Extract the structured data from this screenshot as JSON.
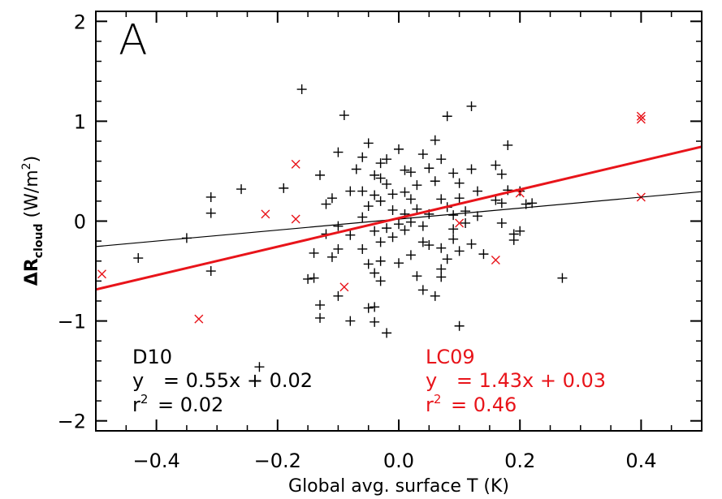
{
  "chart_data": {
    "type": "scatter",
    "panel_label": "A",
    "xlabel": "Global avg. surface T (K)",
    "ylabel": {
      "main": "ΔR",
      "sub": "cloud",
      "unit_pre": " (W/m",
      "unit_sup": "2",
      "unit_post": ")"
    },
    "xlim": [
      -0.5,
      0.5
    ],
    "ylim": [
      -2.1,
      2.1
    ],
    "xticks": [
      -0.4,
      -0.2,
      0.0,
      0.2,
      0.4
    ],
    "xtick_labels": [
      "−0.4",
      "−0.2",
      "0.0",
      "0.2",
      "0.4"
    ],
    "yticks": [
      -2,
      -1,
      0,
      1,
      2
    ],
    "ytick_labels": [
      "−2",
      "−1",
      "0",
      "1",
      "2"
    ],
    "grid": false,
    "colors": {
      "D10": "#000000",
      "LC09": "#e8141a"
    },
    "series": [
      {
        "name": "D10",
        "marker": "plus",
        "fit": {
          "slope": 0.55,
          "intercept": 0.02
        },
        "points": [
          [
            -0.43,
            -0.37
          ],
          [
            -0.35,
            -0.17
          ],
          [
            -0.31,
            0.24
          ],
          [
            -0.31,
            0.08
          ],
          [
            -0.31,
            -0.5
          ],
          [
            -0.26,
            0.32
          ],
          [
            -0.23,
            -1.46
          ],
          [
            -0.19,
            0.33
          ],
          [
            -0.16,
            1.32
          ],
          [
            -0.15,
            -0.58
          ],
          [
            -0.14,
            -0.57
          ],
          [
            -0.14,
            -0.32
          ],
          [
            -0.13,
            0.46
          ],
          [
            -0.13,
            -0.84
          ],
          [
            -0.13,
            -0.97
          ],
          [
            -0.12,
            0.17
          ],
          [
            -0.12,
            -0.13
          ],
          [
            -0.11,
            0.23
          ],
          [
            -0.11,
            -0.36
          ],
          [
            -0.1,
            0.69
          ],
          [
            -0.1,
            -0.05
          ],
          [
            -0.1,
            -0.28
          ],
          [
            -0.1,
            -0.75
          ],
          [
            -0.09,
            1.06
          ],
          [
            -0.08,
            0.3
          ],
          [
            -0.08,
            -0.14
          ],
          [
            -0.07,
            0.52
          ],
          [
            -0.06,
            0.64
          ],
          [
            -0.06,
            0.3
          ],
          [
            -0.06,
            0.04
          ],
          [
            -0.06,
            -0.28
          ],
          [
            -0.05,
            0.78
          ],
          [
            -0.05,
            0.15
          ],
          [
            -0.05,
            -0.43
          ],
          [
            -0.05,
            -0.87
          ],
          [
            -0.04,
            0.46
          ],
          [
            -0.04,
            0.26
          ],
          [
            -0.04,
            -0.1
          ],
          [
            -0.04,
            -0.52
          ],
          [
            -0.04,
            -0.86
          ],
          [
            -0.04,
            -1.01
          ],
          [
            -0.03,
            0.58
          ],
          [
            -0.03,
            0.43
          ],
          [
            -0.03,
            0.2
          ],
          [
            -0.03,
            -0.21
          ],
          [
            -0.03,
            -0.4
          ],
          [
            -0.03,
            -0.6
          ],
          [
            -0.02,
            0.62
          ],
          [
            -0.02,
            -0.07
          ],
          [
            -0.02,
            -1.12
          ],
          [
            -0.01,
            0.27
          ],
          [
            -0.01,
            0.11
          ],
          [
            -0.01,
            -0.16
          ],
          [
            0.0,
            0.72
          ],
          [
            0.0,
            -0.42
          ],
          [
            0.01,
            0.51
          ],
          [
            0.01,
            0.29
          ],
          [
            0.01,
            0.07
          ],
          [
            0.01,
            -0.09
          ],
          [
            0.02,
            0.49
          ],
          [
            0.02,
            0.22
          ],
          [
            0.02,
            -0.01
          ],
          [
            0.02,
            -0.34
          ],
          [
            0.03,
            0.36
          ],
          [
            0.03,
            0.12
          ],
          [
            0.04,
            0.67
          ],
          [
            0.04,
            -0.05
          ],
          [
            0.04,
            -0.21
          ],
          [
            0.04,
            -0.69
          ],
          [
            0.05,
            0.53
          ],
          [
            0.05,
            0.07
          ],
          [
            0.06,
            0.4
          ],
          [
            0.06,
            -0.75
          ],
          [
            0.07,
            0.62
          ],
          [
            0.07,
            0.22
          ],
          [
            0.07,
            -0.27
          ],
          [
            0.07,
            -0.48
          ],
          [
            0.08,
            1.05
          ],
          [
            0.08,
            0.14
          ],
          [
            0.08,
            -0.38
          ],
          [
            0.09,
            0.06
          ],
          [
            0.09,
            -0.08
          ],
          [
            0.09,
            -0.18
          ],
          [
            0.1,
            0.38
          ],
          [
            0.1,
            0.23
          ],
          [
            0.1,
            -0.3
          ],
          [
            0.11,
            0.1
          ],
          [
            0.11,
            -0.02
          ],
          [
            0.12,
            1.15
          ],
          [
            0.12,
            -0.23
          ],
          [
            0.13,
            0.3
          ],
          [
            0.13,
            0.05
          ],
          [
            0.14,
            -0.33
          ],
          [
            0.16,
            0.56
          ],
          [
            0.16,
            0.21
          ],
          [
            0.17,
            0.47
          ],
          [
            0.17,
            0.18
          ],
          [
            0.17,
            -0.02
          ],
          [
            0.18,
            0.76
          ],
          [
            0.18,
            0.31
          ],
          [
            0.19,
            -0.13
          ],
          [
            0.19,
            -0.19
          ],
          [
            0.2,
            0.3
          ],
          [
            0.2,
            -0.1
          ],
          [
            0.21,
            0.17
          ],
          [
            0.22,
            0.18
          ],
          [
            0.27,
            -0.57
          ],
          [
            0.1,
            -1.05
          ],
          [
            0.07,
            -0.56
          ],
          [
            0.06,
            0.81
          ],
          [
            0.09,
            0.48
          ],
          [
            0.03,
            -0.55
          ],
          [
            -0.08,
            -1.0
          ],
          [
            0.0,
            -0.03
          ],
          [
            -0.02,
            0.37
          ],
          [
            0.05,
            -0.24
          ],
          [
            0.12,
            0.52
          ]
        ]
      },
      {
        "name": "LC09",
        "marker": "x",
        "fit": {
          "slope": 1.43,
          "intercept": 0.03
        },
        "points": [
          [
            -0.49,
            -0.53
          ],
          [
            -0.33,
            -0.98
          ],
          [
            -0.22,
            0.07
          ],
          [
            -0.17,
            0.57
          ],
          [
            -0.17,
            0.02
          ],
          [
            -0.09,
            -0.66
          ],
          [
            0.1,
            -0.02
          ],
          [
            0.16,
            -0.39
          ],
          [
            0.2,
            0.28
          ],
          [
            0.4,
            1.05
          ],
          [
            0.4,
            1.02
          ],
          [
            0.4,
            0.24
          ]
        ]
      }
    ],
    "annotations": {
      "d10": {
        "name": "D10",
        "eq_y": "y",
        "eq_rest": " = 0.55x + 0.02",
        "r_r": "r",
        "r_sup": "2",
        "r_rest": " = 0.02"
      },
      "lc09": {
        "name": "LC09",
        "eq_y": "y",
        "eq_rest": " = 1.43x + 0.03",
        "r_r": "r",
        "r_sup": "2",
        "r_rest": " = 0.46"
      }
    }
  }
}
